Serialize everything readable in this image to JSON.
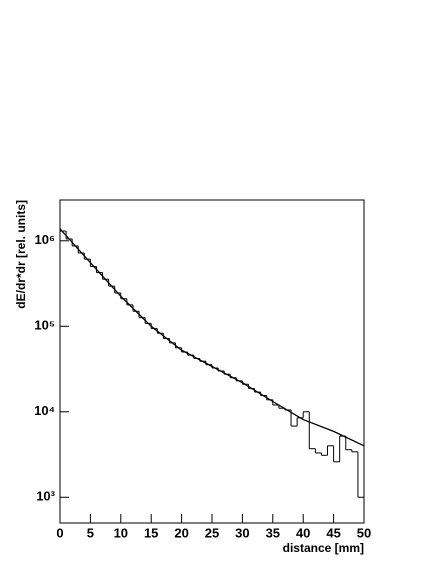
{
  "chart_data": {
    "type": "histogram",
    "x_label": "distance [mm]",
    "y_label": "dE/dr*dr  [rel. units]",
    "bins": [
      0,
      1,
      2,
      3,
      4,
      5,
      6,
      7,
      8,
      9,
      10,
      11,
      12,
      13,
      14,
      15,
      16,
      17,
      18,
      19,
      20,
      21,
      22,
      23,
      24,
      25,
      26,
      27,
      28,
      29,
      30,
      31,
      32,
      33,
      34,
      35,
      36,
      37,
      38,
      39,
      40,
      41,
      42,
      43,
      44,
      45,
      46,
      47,
      48,
      49,
      50
    ],
    "counts": [
      1300000,
      1050000,
      870000,
      720000,
      610000,
      500000,
      425000,
      355000,
      295000,
      245000,
      210000,
      178000,
      150000,
      126000,
      108000,
      94000,
      83000,
      72000,
      64000,
      56000,
      50000,
      46000,
      42000,
      39000,
      35500,
      32500,
      30000,
      27500,
      25000,
      23000,
      21000,
      18700,
      17000,
      15500,
      13800,
      12000,
      11000,
      10500,
      6800,
      8500,
      10000,
      3700,
      3300,
      3100,
      4000,
      2600,
      5200,
      3600,
      3400,
      1000
    ],
    "color": "#000000",
    "fit": {
      "x": [
        0,
        5,
        10,
        15,
        20,
        25,
        30,
        35,
        40,
        45,
        50
      ],
      "values": [
        1380000,
        555000,
        224000,
        100000,
        52500,
        33900,
        21900,
        13200,
        8100,
        5900,
        4000
      ]
    },
    "xlim": [
      0,
      50
    ],
    "ylim": [
      500,
      3000000
    ],
    "log_scale_y": true,
    "xticks": [
      0,
      5,
      10,
      15,
      20,
      25,
      30,
      35,
      40,
      45,
      50
    ],
    "yticks": [
      {
        "value": 1000,
        "label": "10³"
      },
      {
        "value": 10000,
        "label": "10⁴"
      },
      {
        "value": 100000,
        "label": "10⁵"
      },
      {
        "value": 1000000,
        "label": "10⁶"
      }
    ]
  }
}
